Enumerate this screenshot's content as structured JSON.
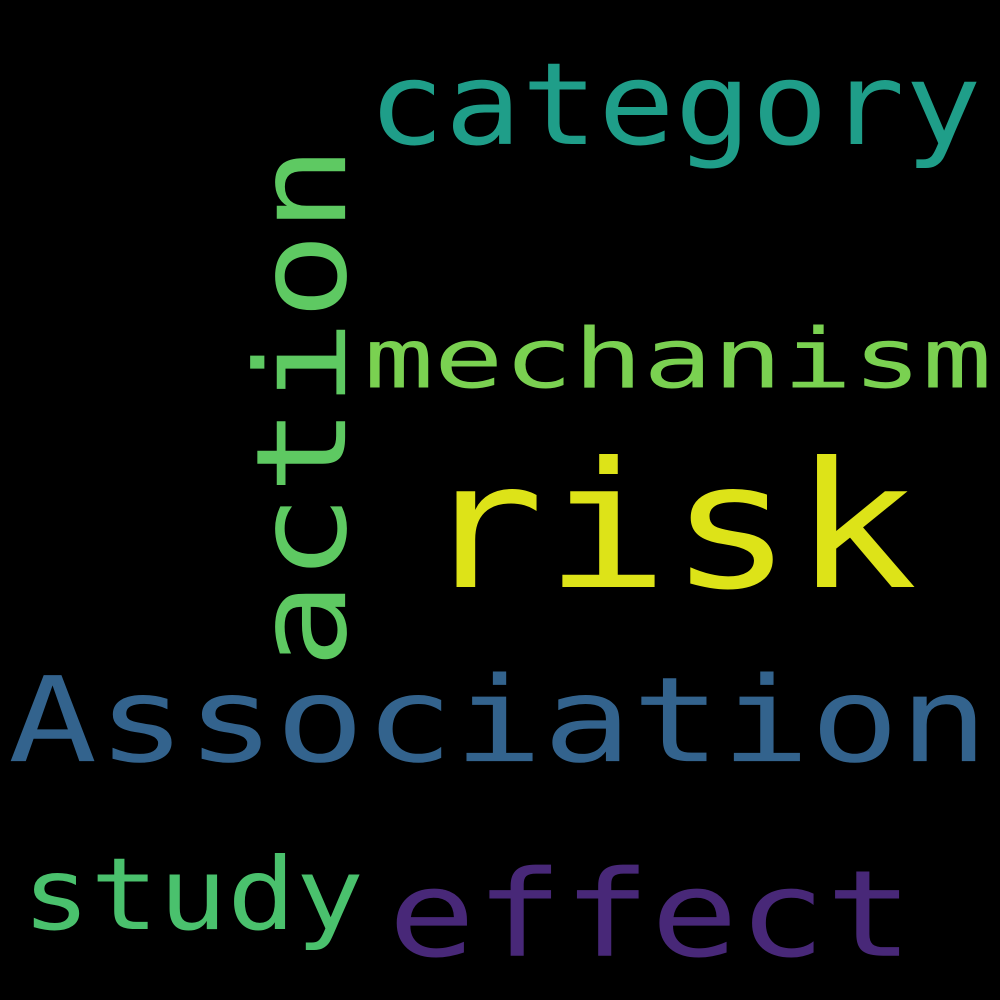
{
  "background_color": "#000000",
  "words": [
    {
      "id": "risk",
      "text": "risk",
      "color": "#dde318",
      "rotated": false
    },
    {
      "id": "association",
      "text": "Association",
      "color": "#33638d",
      "rotated": false
    },
    {
      "id": "mechanism",
      "text": "mechanism",
      "color": "#7ad151",
      "rotated": false
    },
    {
      "id": "category",
      "text": "category",
      "color": "#1f9e89",
      "rotated": false
    },
    {
      "id": "action",
      "text": "action",
      "color": "#5ec962",
      "rotated": true
    },
    {
      "id": "effect",
      "text": "effect",
      "color": "#482878",
      "rotated": false
    },
    {
      "id": "study",
      "text": "study",
      "color": "#4ac16d",
      "rotated": false
    }
  ]
}
